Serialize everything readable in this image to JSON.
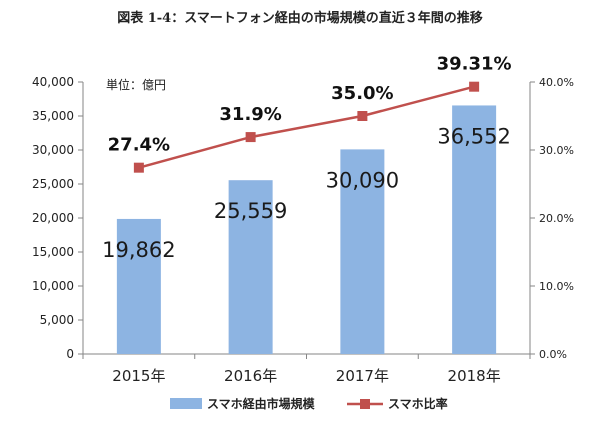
{
  "title": "図表 1-4：スマートフォン経由の市場規模の直近３年間の推移",
  "chart_data": {
    "type": "bar+line",
    "unit_label": "単位：億円",
    "categories": [
      "2015年",
      "2016年",
      "2017年",
      "2018年"
    ],
    "series": [
      {
        "name": "スマホ経由市場規模",
        "type": "bar",
        "axis": "left",
        "values": [
          19862,
          25559,
          30090,
          36552
        ],
        "labels": [
          "19,862",
          "25,559",
          "30,090",
          "36,552"
        ],
        "color": "#8db4e2"
      },
      {
        "name": "スマホ比率",
        "type": "line",
        "axis": "right",
        "values": [
          27.4,
          31.9,
          35.0,
          39.31
        ],
        "labels": [
          "27.4%",
          "31.9%",
          "35.0%",
          "39.31%"
        ],
        "color": "#c0504d"
      }
    ],
    "y_left": {
      "min": 0,
      "max": 40000,
      "ticks": [
        "0",
        "5,000",
        "10,000",
        "15,000",
        "20,000",
        "25,000",
        "30,000",
        "35,000",
        "40,000"
      ]
    },
    "y_right": {
      "min": 0,
      "max": 40,
      "ticks": [
        "0.0%",
        "10.0%",
        "20.0%",
        "30.0%",
        "40.0%"
      ]
    },
    "grid": false,
    "legend_position": "bottom"
  }
}
